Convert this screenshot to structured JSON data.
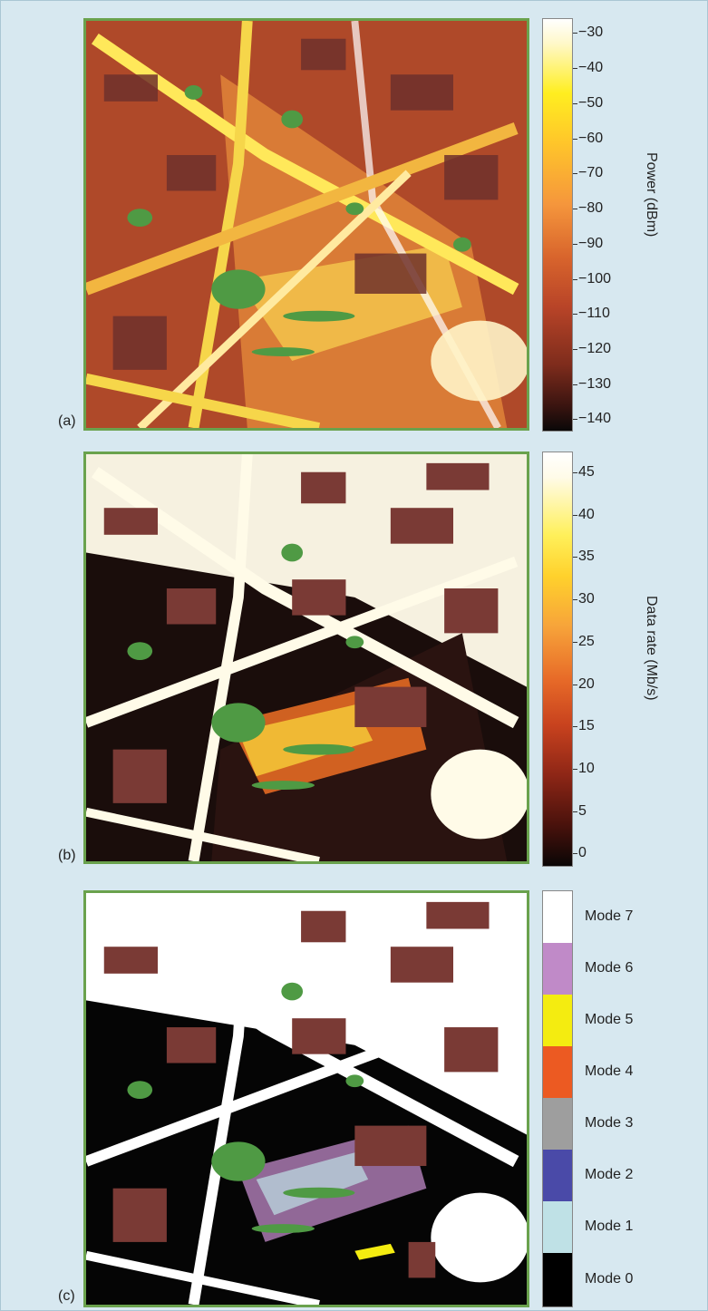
{
  "panels": [
    {
      "label": "(a)",
      "colorbar": {
        "title": "Power (dBm)",
        "ticks": [
          "−30",
          "−40",
          "−50",
          "−60",
          "−70",
          "−80",
          "−90",
          "−100",
          "−110",
          "−120",
          "−130",
          "−140"
        ],
        "range": [
          -140,
          -30
        ]
      }
    },
    {
      "label": "(b)",
      "colorbar": {
        "title": "Data rate (Mb/s)",
        "ticks": [
          "45",
          "40",
          "35",
          "30",
          "25",
          "20",
          "15",
          "10",
          "5",
          "0"
        ],
        "range": [
          0,
          45
        ]
      }
    },
    {
      "label": "(c)",
      "legend": [
        {
          "label": "Mode 7",
          "color": "#ffffff"
        },
        {
          "label": "Mode 6",
          "color": "#c08ac8"
        },
        {
          "label": "Mode 5",
          "color": "#f4ec10"
        },
        {
          "label": "Mode 4",
          "color": "#ec5a22"
        },
        {
          "label": "Mode 3",
          "color": "#9e9e9e"
        },
        {
          "label": "Mode 2",
          "color": "#4a4aa8"
        },
        {
          "label": "Mode 1",
          "color": "#bfe1e6"
        },
        {
          "label": "Mode 0",
          "color": "#000000"
        }
      ]
    }
  ],
  "colors": {
    "building": "#7a3a35",
    "vegetation": "#4f9a44",
    "frame_border": "#6aa24d",
    "background": "#d7e8f0"
  }
}
